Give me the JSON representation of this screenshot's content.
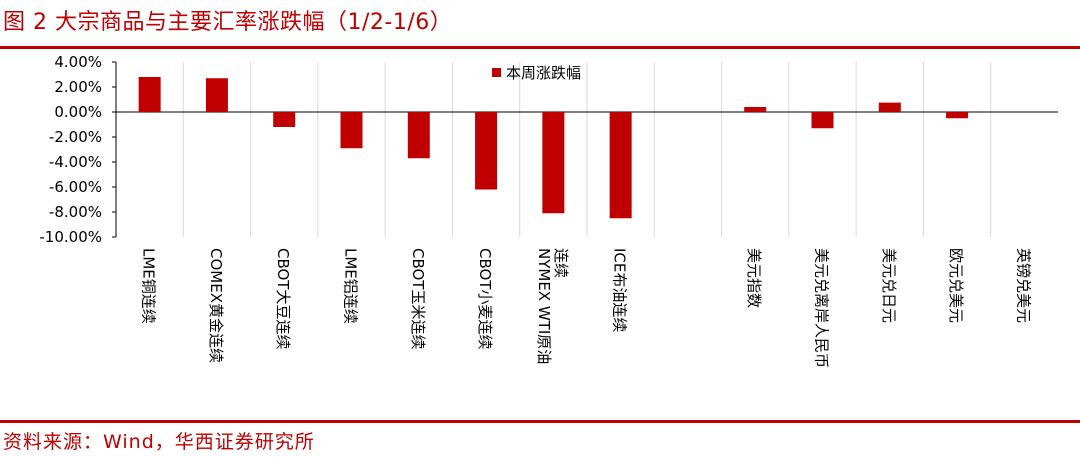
{
  "title": "图 2 大宗商品与主要汇率涨跌幅（1/2-1/6）",
  "source": "资料来源：Wind，华西证券研究所",
  "colors": {
    "accent": "#c00000",
    "bar": "#c00000",
    "grid": "#d9d9d9"
  },
  "chart_data": {
    "type": "bar",
    "categories": [
      "LME铜连续",
      "COMEX黄金连续",
      "CBOT大豆连续",
      "LME铝连续",
      "CBOT玉米连续",
      "CBOT小麦连续",
      "NYMEX WTI原油连续",
      "ICE布油连续",
      "",
      "美元指数",
      "美元兑离岸人民币",
      "美元兑日元",
      "欧元兑美元",
      "英镑兑美元"
    ],
    "series": [
      {
        "name": "本周涨跌幅",
        "values": [
          2.8,
          2.7,
          -1.2,
          -2.9,
          -3.7,
          -6.2,
          -8.1,
          -8.5,
          null,
          0.4,
          -1.3,
          0.75,
          -0.5,
          0.0
        ]
      }
    ],
    "yticks": [
      "4.00%",
      "2.00%",
      "0.00%",
      "-2.00%",
      "-4.00%",
      "-6.00%",
      "-8.00%",
      "-10.00%"
    ],
    "ylim": [
      -10,
      4
    ],
    "grid": "vertical-separators",
    "legend": "top-center"
  }
}
